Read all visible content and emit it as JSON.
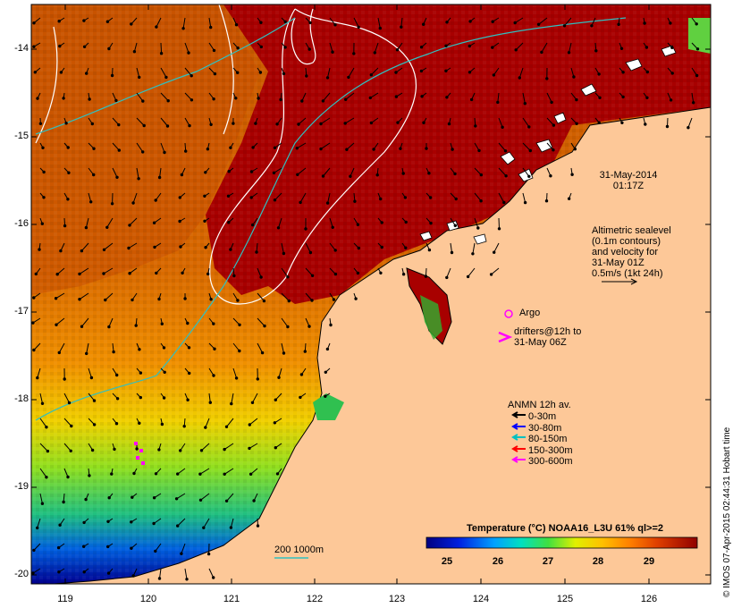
{
  "timestamp": {
    "line1": "31-May-2014",
    "line2": "01:17Z"
  },
  "altimetry": {
    "lines": [
      "Altimetric sealevel",
      "(0.1m contours)",
      "and velocity for",
      "31-May 01Z",
      "0.5m/s (1kt 24h)"
    ]
  },
  "argo_label": "Argo",
  "drifters": {
    "line1": "drifters@12h to",
    "line2": "31-May 06Z"
  },
  "anmn": {
    "title": "ANMN 12h av.",
    "items": [
      {
        "label": "0-30m",
        "color": "#000000"
      },
      {
        "label": "30-80m",
        "color": "#0000ff"
      },
      {
        "label": "80-150m",
        "color": "#00c0c0"
      },
      {
        "label": "150-300m",
        "color": "#ff0000"
      },
      {
        "label": "300-600m",
        "color": "#ff00ff"
      }
    ]
  },
  "colorbar": {
    "title": "Temperature (°C) NOAA16_L3U 61% ql>=2",
    "ticks": [
      "25",
      "26",
      "27",
      "28",
      "29"
    ]
  },
  "bathy_label": "200  1000m",
  "credit": "© IMOS 07-Apr-2015 02:44:31 Hobart time",
  "axes": {
    "x_ticks": [
      "119",
      "120",
      "121",
      "122",
      "123",
      "124",
      "125",
      "126"
    ],
    "y_ticks": [
      "-14",
      "-15",
      "-16",
      "-17",
      "-18",
      "-19",
      "-20"
    ]
  },
  "colors": {
    "land": "#fdc898",
    "hot": "#a10000",
    "warm": "#d04500",
    "orange": "#f08000",
    "yellow": "#f0e000",
    "green": "#40c040",
    "cyan": "#00c0c0",
    "blue": "#0030c0",
    "navy": "#000080",
    "magenta": "#ff00ff"
  }
}
